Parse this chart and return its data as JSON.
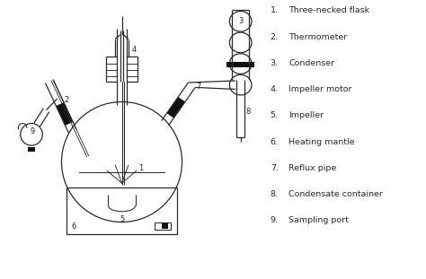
{
  "legend_items": [
    "Three-necked flask",
    "Thermometer",
    "Condenser",
    "Impeller motor",
    "Impeller",
    "Heating mantle",
    "Reflux pipe",
    "Condensate container",
    "Sampling port"
  ],
  "bg_color": "#ffffff",
  "line_color": "#2a2a2a",
  "black_color": "#111111",
  "fig_width": 4.74,
  "fig_height": 3.11,
  "dpi": 100
}
